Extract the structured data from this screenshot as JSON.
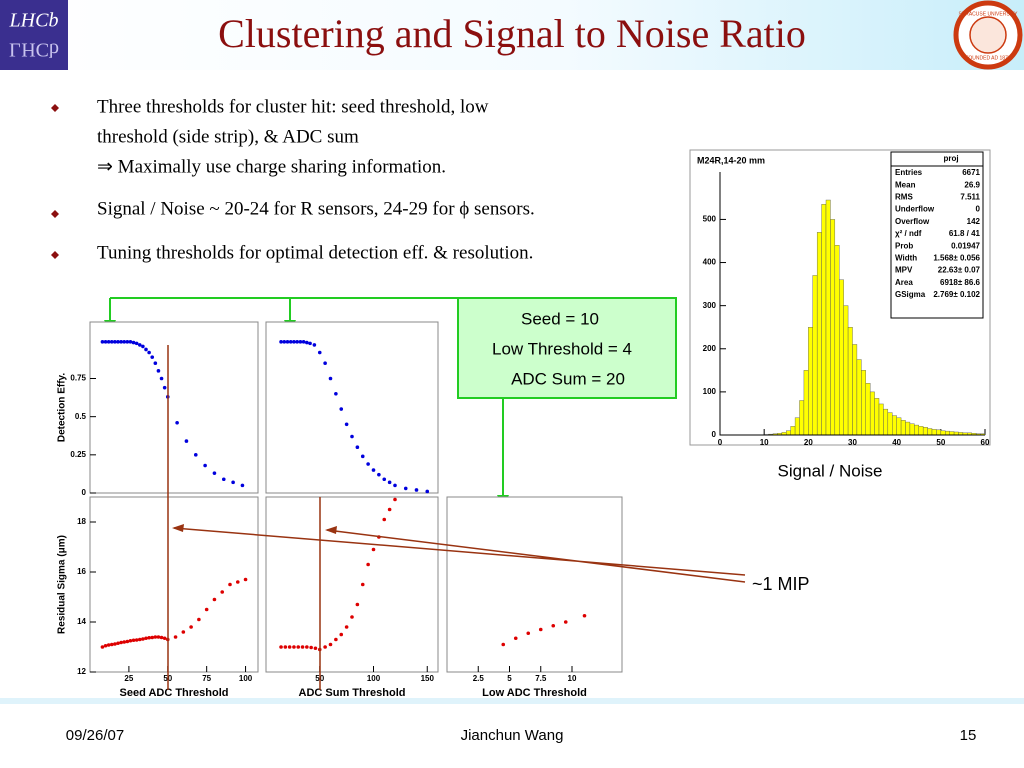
{
  "header": {
    "title": "Clustering and Signal to Noise Ratio",
    "logo_left": "LHCb",
    "seal_top": "SYRACUSE UNIVERSITY",
    "seal_bottom": "FOUNDED AD 1870"
  },
  "bullets": [
    {
      "lines": [
        "Three thresholds for cluster hit:  seed threshold,  low",
        "threshold (side strip),  & ADC sum",
        "⇒  Maximally use charge sharing information."
      ]
    },
    {
      "lines": [
        "Signal / Noise ~ 20-24 for R sensors, 24-29 for ϕ sensors."
      ]
    },
    {
      "lines": [
        "Tuning thresholds for optimal detection eff. & resolution."
      ]
    }
  ],
  "callout": [
    "Seed = 10",
    "Low Threshold = 4",
    "ADC Sum = 20"
  ],
  "annotation": "~1 MIP",
  "footer": {
    "date": "09/26/07",
    "author": "Jianchun Wang",
    "page": "15"
  },
  "chart_data": [
    {
      "type": "histogram",
      "title": "M24R,14-20 mm",
      "xlabel": "Signal / Noise",
      "color": "#ffff00",
      "bins": [
        0,
        1,
        2,
        3,
        4,
        5,
        6,
        7,
        8,
        9,
        10,
        11,
        12,
        13,
        14,
        15,
        16,
        17,
        18,
        19,
        20,
        21,
        22,
        23,
        24,
        25,
        26,
        27,
        28,
        29,
        30,
        31,
        32,
        33,
        34,
        35,
        36,
        37,
        38,
        39,
        40,
        41,
        42,
        43,
        44,
        45,
        46,
        47,
        48,
        49,
        50,
        51,
        52,
        53,
        54,
        55,
        56,
        57,
        58,
        59,
        60
      ],
      "counts": [
        0,
        0,
        0,
        0,
        0,
        0,
        0,
        0,
        0,
        0,
        1,
        2,
        3,
        4,
        6,
        10,
        20,
        40,
        80,
        150,
        250,
        370,
        470,
        535,
        545,
        500,
        440,
        360,
        300,
        250,
        210,
        175,
        150,
        120,
        100,
        85,
        72,
        60,
        52,
        45,
        40,
        34,
        30,
        26,
        23,
        20,
        18,
        15,
        13,
        12,
        10,
        9,
        8,
        7,
        6,
        5,
        5,
        4,
        3,
        3
      ],
      "xlim": [
        0,
        60
      ],
      "xticks": [
        0,
        10,
        20,
        30,
        40,
        50,
        60
      ],
      "ylim": [
        0,
        610
      ],
      "yticks": [
        0,
        100,
        200,
        300,
        400,
        500
      ],
      "stats": {
        "title": "proj",
        "rows": [
          [
            "Entries",
            "6671"
          ],
          [
            "Mean",
            "26.9"
          ],
          [
            "RMS",
            "7.511"
          ],
          [
            "Underflow",
            "0"
          ],
          [
            "Overflow",
            "142"
          ],
          [
            "χ² / ndf",
            "61.8 / 41"
          ],
          [
            "Prob",
            "0.01947"
          ],
          [
            "Width",
            "1.568± 0.056"
          ],
          [
            "MPV",
            "22.63± 0.07"
          ],
          [
            "Area",
            "6918± 86.6"
          ],
          [
            "GSigma",
            "2.769± 0.102"
          ]
        ]
      }
    },
    {
      "type": "scatter",
      "ylabel": "Detection Effy.",
      "color": "#0000dd",
      "x": [
        8,
        10,
        12,
        14,
        16,
        18,
        20,
        22,
        24,
        26,
        28,
        30,
        32,
        34,
        36,
        38,
        40,
        42,
        44,
        46,
        48,
        50,
        56,
        62,
        68,
        74,
        80,
        86,
        92,
        98
      ],
      "values": [
        0.99,
        0.99,
        0.99,
        0.99,
        0.99,
        0.99,
        0.99,
        0.99,
        0.99,
        0.99,
        0.985,
        0.98,
        0.97,
        0.96,
        0.94,
        0.92,
        0.89,
        0.85,
        0.8,
        0.75,
        0.69,
        0.63,
        0.46,
        0.34,
        0.25,
        0.18,
        0.13,
        0.09,
        0.07,
        0.05
      ],
      "xlim": [
        0,
        108
      ],
      "ylim": [
        0,
        1.12
      ],
      "yticks": [
        0,
        0.25,
        0.5,
        0.75
      ]
    },
    {
      "type": "scatter",
      "color": "#0000dd",
      "x": [
        14,
        17,
        20,
        23,
        26,
        29,
        32,
        35,
        38,
        41,
        45,
        50,
        55,
        60,
        65,
        70,
        75,
        80,
        85,
        90,
        95,
        100,
        105,
        110,
        115,
        120,
        130,
        140,
        150
      ],
      "values": [
        0.99,
        0.99,
        0.99,
        0.99,
        0.99,
        0.99,
        0.99,
        0.99,
        0.985,
        0.98,
        0.97,
        0.92,
        0.85,
        0.75,
        0.65,
        0.55,
        0.45,
        0.37,
        0.3,
        0.24,
        0.19,
        0.15,
        0.12,
        0.09,
        0.07,
        0.05,
        0.03,
        0.02,
        0.01
      ],
      "xlim": [
        0,
        160
      ],
      "ylim": [
        0,
        1.12
      ]
    },
    {
      "type": "scatter",
      "ylabel": "Residual Sigma (μm)",
      "xlabel": "Seed ADC Threshold",
      "color": "#dd0000",
      "x": [
        8,
        10,
        12,
        14,
        16,
        18,
        20,
        22,
        24,
        26,
        28,
        30,
        32,
        34,
        36,
        38,
        40,
        42,
        44,
        46,
        48,
        50,
        55,
        60,
        65,
        70,
        75,
        80,
        85,
        90,
        95,
        100
      ],
      "values": [
        13.0,
        13.05,
        13.08,
        13.1,
        13.12,
        13.15,
        13.18,
        13.2,
        13.22,
        13.25,
        13.27,
        13.28,
        13.3,
        13.32,
        13.35,
        13.37,
        13.38,
        13.4,
        13.4,
        13.38,
        13.35,
        13.3,
        13.4,
        13.6,
        13.8,
        14.1,
        14.5,
        14.9,
        15.2,
        15.5,
        15.6,
        15.7
      ],
      "xlim": [
        0,
        108
      ],
      "xticks": [
        25,
        50,
        75,
        100
      ],
      "ylim": [
        12,
        19
      ],
      "yticks": [
        12,
        14,
        16,
        18
      ]
    },
    {
      "type": "scatter",
      "xlabel": "ADC Sum Threshold",
      "color": "#dd0000",
      "x": [
        14,
        18,
        22,
        26,
        30,
        34,
        38,
        42,
        46,
        50,
        55,
        60,
        65,
        70,
        75,
        80,
        85,
        90,
        95,
        100,
        105,
        110,
        115,
        120
      ],
      "values": [
        13.0,
        13.0,
        13.0,
        13.0,
        13.0,
        13.0,
        13.0,
        12.98,
        12.95,
        12.9,
        13.0,
        13.1,
        13.3,
        13.5,
        13.8,
        14.2,
        14.7,
        15.5,
        16.3,
        16.9,
        17.4,
        18.1,
        18.5,
        18.9
      ],
      "xlim": [
        0,
        160
      ],
      "xticks": [
        50,
        100,
        150
      ],
      "ylim": [
        12,
        19
      ]
    },
    {
      "type": "scatter",
      "xlabel": "Low ADC Threshold",
      "color": "#dd0000",
      "x": [
        4.5,
        5.5,
        6.5,
        7.5,
        8.5,
        9.5,
        11
      ],
      "values": [
        13.1,
        13.35,
        13.55,
        13.7,
        13.85,
        14.0,
        14.25
      ],
      "xlim": [
        0,
        14
      ],
      "xticks": [
        2.5,
        5,
        7.5,
        10
      ],
      "ylim": [
        12,
        19
      ]
    }
  ]
}
